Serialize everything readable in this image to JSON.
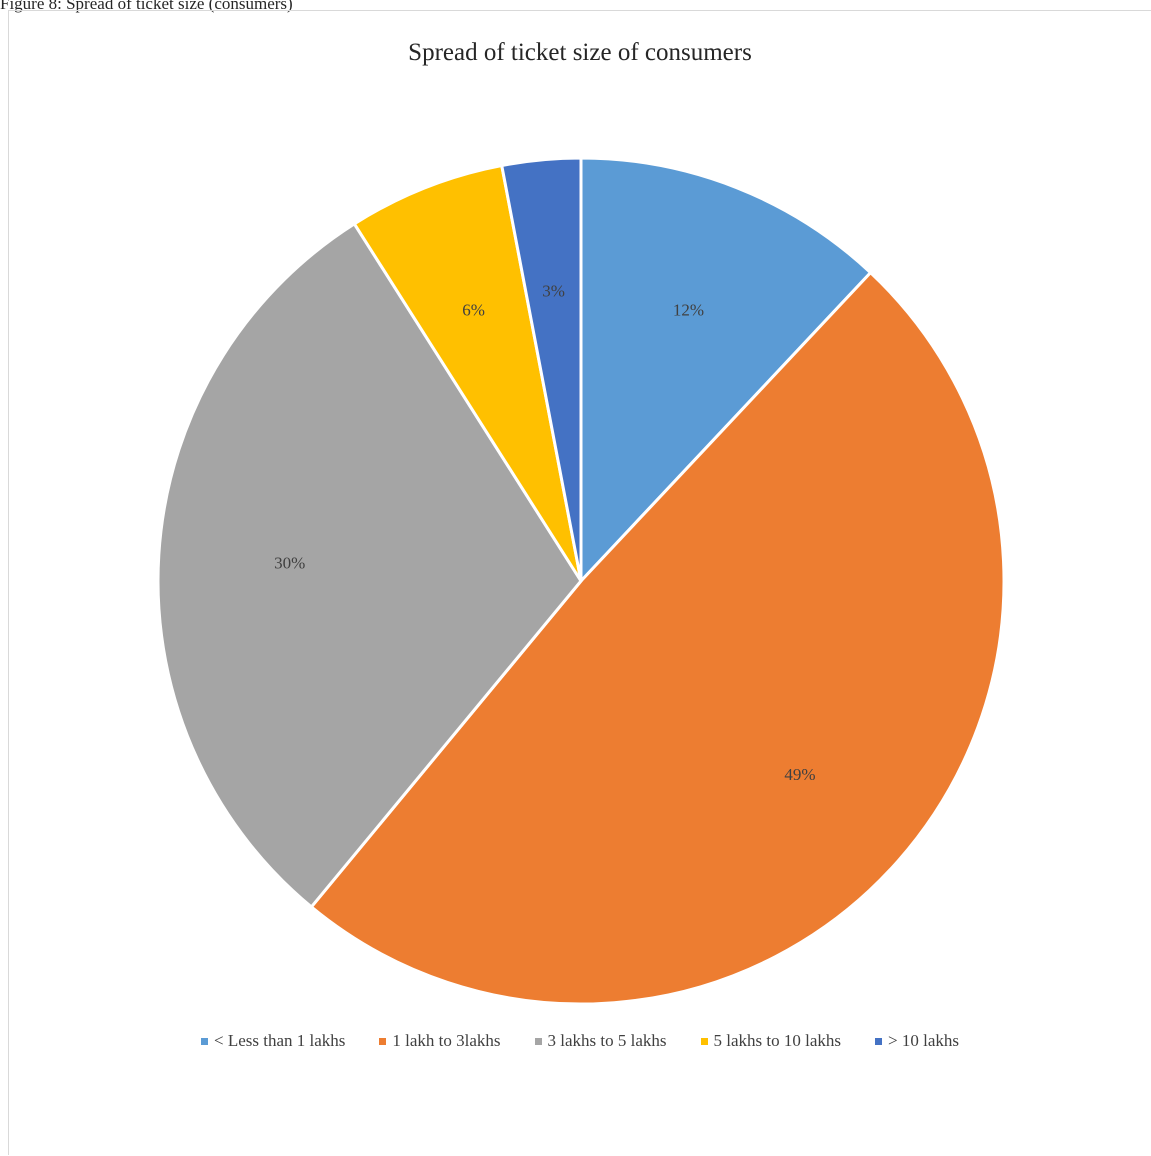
{
  "caption": "Figure 8: Spread of ticket size (consumers)",
  "chart_data": {
    "type": "pie",
    "title": "Spread of ticket size of consumers",
    "categories": [
      "< Less than 1 lakhs",
      "1 lakh to 3lakhs",
      "3 lakhs to 5 lakhs",
      "5 lakhs to 10 lakhs",
      "> 10 lakhs"
    ],
    "values": [
      12,
      49,
      30,
      6,
      3
    ],
    "data_labels": [
      "12%",
      "49%",
      "30%",
      "6%",
      "3%"
    ],
    "colors": [
      "#5b9bd5",
      "#ed7d31",
      "#a5a5a5",
      "#ffc000",
      "#4472c4"
    ],
    "legend_position": "bottom"
  }
}
